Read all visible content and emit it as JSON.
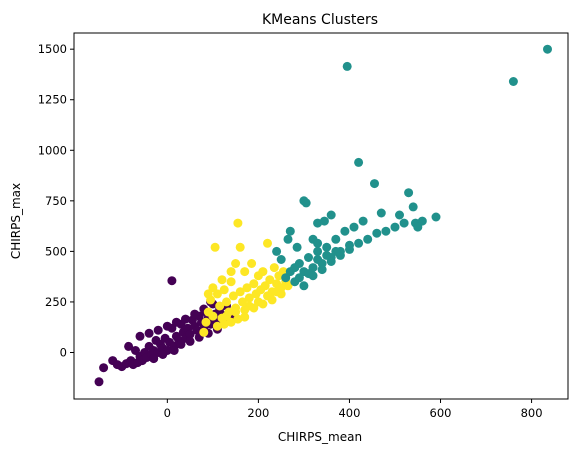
{
  "chart_data": {
    "type": "scatter",
    "title": "KMeans Clusters",
    "xlabel": "CHIRPS_mean",
    "ylabel": "CHIRPS_max",
    "xlim": [
      -205,
      880
    ],
    "ylim": [
      -230,
      1580
    ],
    "xticks": [
      0,
      200,
      400,
      600,
      800
    ],
    "yticks": [
      0,
      250,
      500,
      750,
      1000,
      1250,
      1500
    ],
    "grid": false,
    "legend": "none",
    "series": [
      {
        "color": "#440154",
        "points": [
          [
            -150,
            -145
          ],
          [
            -140,
            -75
          ],
          [
            -120,
            -40
          ],
          [
            -110,
            -60
          ],
          [
            -100,
            -70
          ],
          [
            -90,
            -55
          ],
          [
            -85,
            30
          ],
          [
            -80,
            -40
          ],
          [
            -75,
            -60
          ],
          [
            -70,
            10
          ],
          [
            -65,
            -50
          ],
          [
            -60,
            -20
          ],
          [
            -55,
            -40
          ],
          [
            -50,
            0
          ],
          [
            -45,
            -25
          ],
          [
            -40,
            30
          ],
          [
            -35,
            -10
          ],
          [
            -30,
            10
          ],
          [
            -25,
            60
          ],
          [
            -20,
            0
          ],
          [
            -15,
            40
          ],
          [
            -10,
            20
          ],
          [
            -5,
            70
          ],
          [
            0,
            10
          ],
          [
            5,
            50
          ],
          [
            10,
            120
          ],
          [
            15,
            30
          ],
          [
            20,
            80
          ],
          [
            25,
            60
          ],
          [
            30,
            140
          ],
          [
            35,
            100
          ],
          [
            40,
            70
          ],
          [
            45,
            120
          ],
          [
            50,
            90
          ],
          [
            55,
            160
          ],
          [
            60,
            130
          ],
          [
            65,
            110
          ],
          [
            70,
            180
          ],
          [
            75,
            150
          ],
          [
            80,
            120
          ],
          [
            85,
            200
          ],
          [
            90,
            170
          ],
          [
            95,
            140
          ],
          [
            100,
            240
          ],
          [
            105,
            190
          ],
          [
            110,
            160
          ],
          [
            115,
            215
          ],
          [
            120,
            185
          ],
          [
            125,
            170
          ],
          [
            130,
            230
          ],
          [
            135,
            195
          ],
          [
            140,
            180
          ],
          [
            10,
            355
          ],
          [
            -60,
            80
          ],
          [
            -40,
            95
          ],
          [
            -20,
            110
          ],
          [
            0,
            130
          ],
          [
            20,
            150
          ],
          [
            40,
            165
          ],
          [
            60,
            190
          ],
          [
            80,
            215
          ],
          [
            95,
            250
          ],
          [
            30,
            40
          ],
          [
            50,
            55
          ],
          [
            70,
            75
          ],
          [
            90,
            95
          ],
          [
            110,
            115
          ],
          [
            -30,
            -30
          ],
          [
            -10,
            -10
          ],
          [
            15,
            10
          ]
        ]
      },
      {
        "color": "#fde725",
        "points": [
          [
            80,
            100
          ],
          [
            85,
            150
          ],
          [
            90,
            200
          ],
          [
            95,
            260
          ],
          [
            100,
            180
          ],
          [
            105,
            520
          ],
          [
            110,
            290
          ],
          [
            115,
            230
          ],
          [
            120,
            170
          ],
          [
            125,
            310
          ],
          [
            130,
            250
          ],
          [
            135,
            200
          ],
          [
            140,
            350
          ],
          [
            145,
            280
          ],
          [
            150,
            220
          ],
          [
            155,
            640
          ],
          [
            160,
            300
          ],
          [
            165,
            250
          ],
          [
            170,
            400
          ],
          [
            175,
            320
          ],
          [
            180,
            270
          ],
          [
            185,
            440
          ],
          [
            190,
            340
          ],
          [
            195,
            290
          ],
          [
            200,
            380
          ],
          [
            205,
            310
          ],
          [
            210,
            400
          ],
          [
            215,
            330
          ],
          [
            220,
            540
          ],
          [
            225,
            360
          ],
          [
            230,
            300
          ],
          [
            235,
            420
          ],
          [
            240,
            340
          ],
          [
            245,
            380
          ],
          [
            250,
            320
          ],
          [
            255,
            400
          ],
          [
            260,
            350
          ],
          [
            160,
            520
          ],
          [
            150,
            440
          ],
          [
            140,
            400
          ],
          [
            120,
            360
          ],
          [
            100,
            320
          ],
          [
            90,
            290
          ],
          [
            180,
            230
          ],
          [
            200,
            250
          ],
          [
            220,
            280
          ],
          [
            240,
            300
          ],
          [
            130,
            180
          ],
          [
            150,
            200
          ],
          [
            170,
            210
          ],
          [
            190,
            220
          ],
          [
            210,
            240
          ],
          [
            230,
            260
          ],
          [
            250,
            290
          ],
          [
            265,
            330
          ],
          [
            110,
            130
          ],
          [
            125,
            140
          ],
          [
            140,
            150
          ],
          [
            155,
            165
          ],
          [
            170,
            175
          ]
        ]
      },
      {
        "color": "#21918c",
        "points": [
          [
            395,
            1415
          ],
          [
            760,
            1340
          ],
          [
            835,
            1500
          ],
          [
            420,
            940
          ],
          [
            455,
            835
          ],
          [
            300,
            750
          ],
          [
            530,
            790
          ],
          [
            540,
            720
          ],
          [
            545,
            640
          ],
          [
            590,
            670
          ],
          [
            560,
            650
          ],
          [
            550,
            620
          ],
          [
            520,
            640
          ],
          [
            510,
            680
          ],
          [
            470,
            690
          ],
          [
            430,
            650
          ],
          [
            410,
            620
          ],
          [
            390,
            600
          ],
          [
            370,
            560
          ],
          [
            350,
            520
          ],
          [
            330,
            500
          ],
          [
            310,
            470
          ],
          [
            290,
            440
          ],
          [
            270,
            400
          ],
          [
            260,
            370
          ],
          [
            280,
            350
          ],
          [
            300,
            330
          ],
          [
            320,
            380
          ],
          [
            340,
            410
          ],
          [
            360,
            450
          ],
          [
            380,
            480
          ],
          [
            400,
            510
          ],
          [
            420,
            540
          ],
          [
            440,
            560
          ],
          [
            460,
            590
          ],
          [
            480,
            600
          ],
          [
            500,
            620
          ],
          [
            270,
            600
          ],
          [
            240,
            500
          ],
          [
            250,
            460
          ],
          [
            280,
            420
          ],
          [
            300,
            400
          ],
          [
            320,
            420
          ],
          [
            340,
            440
          ],
          [
            360,
            470
          ],
          [
            380,
            500
          ],
          [
            400,
            530
          ],
          [
            290,
            370
          ],
          [
            310,
            390
          ],
          [
            330,
            460
          ],
          [
            350,
            480
          ],
          [
            370,
            500
          ],
          [
            330,
            640
          ],
          [
            345,
            650
          ],
          [
            360,
            680
          ],
          [
            305,
            740
          ],
          [
            330,
            540
          ],
          [
            265,
            560
          ],
          [
            285,
            520
          ],
          [
            320,
            560
          ]
        ]
      }
    ]
  }
}
